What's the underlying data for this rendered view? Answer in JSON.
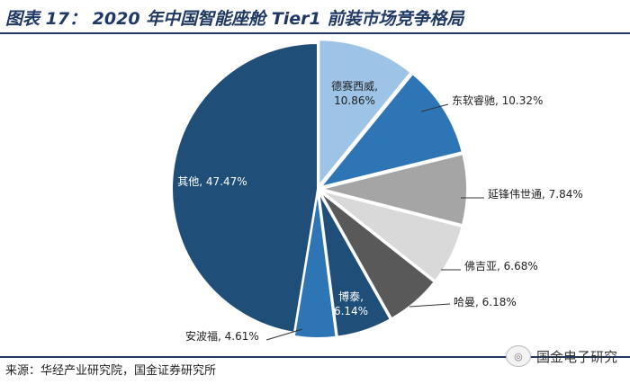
{
  "title": "图表 17： 2020 年中国智能座舱 Tier1 前装市场竞争格局",
  "source": "来源：华经产业研究院，国金证券研究所",
  "watermark": "国金电子研究",
  "watermark_icon": "wechat-icon",
  "chart_data": {
    "type": "pie",
    "title": "2020 年中国智能座舱 Tier1 前装市场竞争格局",
    "unit": "%",
    "slices": [
      {
        "name": "德赛西威",
        "value": 10.86,
        "label": "德赛西威,\n10.86%",
        "color": "#9dc3e6"
      },
      {
        "name": "东软睿驰",
        "value": 10.32,
        "label": "东软睿驰, 10.32%",
        "color": "#2e75b6"
      },
      {
        "name": "延锋伟世通",
        "value": 7.84,
        "label": "延锋伟世通, 7.84%",
        "color": "#a5a5a5"
      },
      {
        "name": "佛吉亚",
        "value": 6.68,
        "label": "佛吉亚, 6.68%",
        "color": "#d9d9d9"
      },
      {
        "name": "哈曼",
        "value": 6.18,
        "label": "哈曼, 6.18%",
        "color": "#595959"
      },
      {
        "name": "博泰",
        "value": 6.14,
        "label": "博泰,\n6.14%",
        "color": "#1f4e79"
      },
      {
        "name": "安波福",
        "value": 4.61,
        "label": "安波福, 4.61%",
        "color": "#2e75b6"
      },
      {
        "name": "其他",
        "value": 47.47,
        "label": "其他, 47.47%",
        "color": "#1f4e79"
      }
    ]
  }
}
